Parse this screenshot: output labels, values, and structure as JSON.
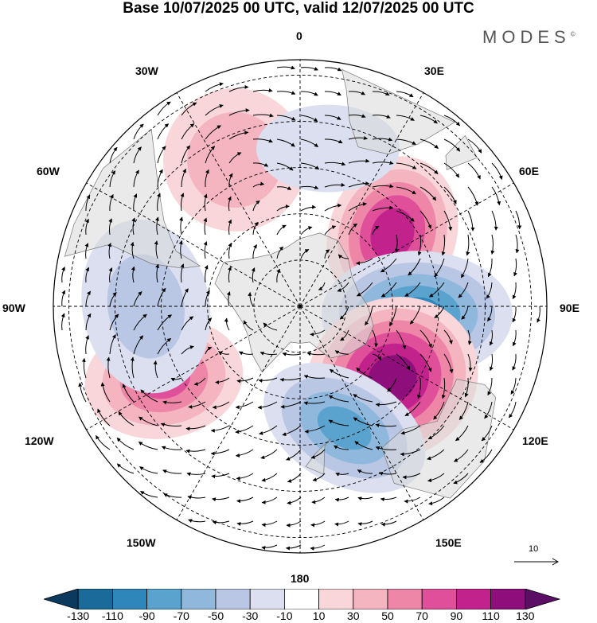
{
  "title": "Base 10/07/2025 00 UTC, valid 12/07/2025 00 UTC",
  "brand": "MODES",
  "brand_mark": "©",
  "longitude_labels": {
    "lon_0": "0",
    "lon_30e": "30E",
    "lon_60e": "60E",
    "lon_90e": "90E",
    "lon_120e": "120E",
    "lon_150e": "150E",
    "lon_180": "180",
    "lon_150w": "150W",
    "lon_120w": "120W",
    "lon_90w": "90W",
    "lon_60w": "60W",
    "lon_30w": "30W"
  },
  "reference_vector": "10",
  "colorbar": {
    "ticks": [
      "-130",
      "-110",
      "-90",
      "-70",
      "-50",
      "-30",
      "-10",
      "10",
      "30",
      "50",
      "70",
      "90",
      "110",
      "130"
    ],
    "colors": [
      "#0b3a5e",
      "#1a6a9a",
      "#2e86bb",
      "#5aa3cf",
      "#8fb8dc",
      "#b9c6e4",
      "#dcdff0",
      "#ffffff",
      "#f8d6d9",
      "#f4b4c0",
      "#ee86a8",
      "#e0509a",
      "#c2228c",
      "#8e0f7c",
      "#5c0d66"
    ]
  },
  "anomaly_centers": [
    {
      "name": "high-60e",
      "lon": 52,
      "lat": -52,
      "value": 110
    },
    {
      "name": "low-90e",
      "lon": 94,
      "lat": -52,
      "value": -100
    },
    {
      "name": "high-120e",
      "lon": 128,
      "lat": -52,
      "value": 130
    },
    {
      "name": "low-150e",
      "lon": 160,
      "lat": -48,
      "value": -80
    },
    {
      "name": "high-120w",
      "lon": -118,
      "lat": -40,
      "value": 80
    },
    {
      "name": "high-30w",
      "lon": -24,
      "lat": -38,
      "value": 50
    },
    {
      "name": "low-90w",
      "lon": -90,
      "lat": -40,
      "value": -40
    },
    {
      "name": "low-0",
      "lon": 10,
      "lat": -38,
      "value": -30
    }
  ]
}
